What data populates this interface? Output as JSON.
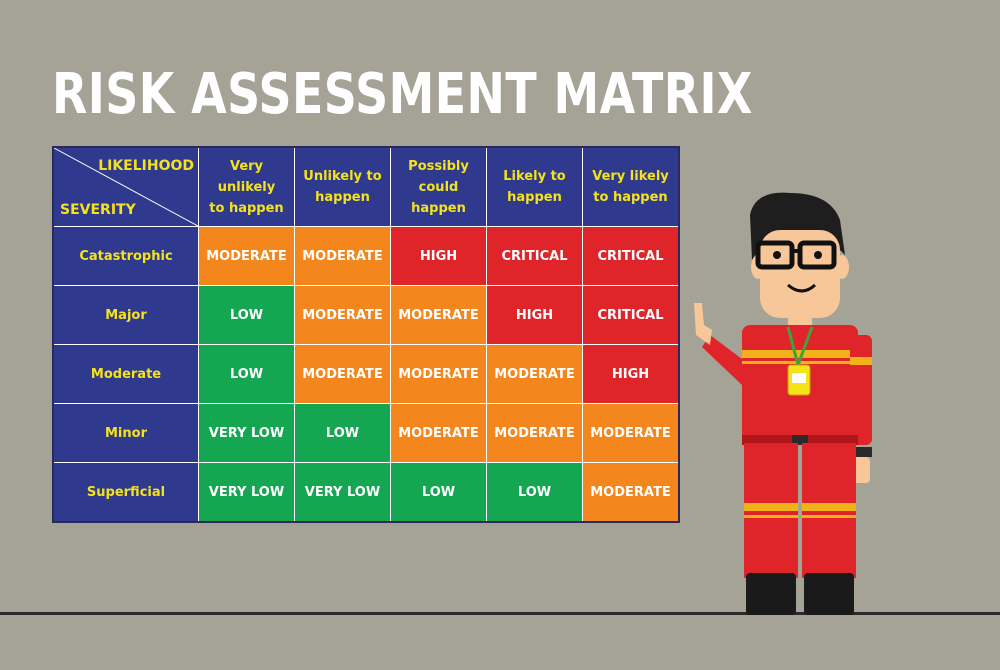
{
  "title": "RISK ASSESSMENT MATRIX",
  "matrix": {
    "likelihood_label": "LIKELIHOOD",
    "severity_label": "SEVERITY",
    "columns": [
      [
        "Very unlikely",
        "to happen"
      ],
      [
        "Unlikely to",
        "happen"
      ],
      [
        "Possibly",
        "could happen"
      ],
      [
        "Likely to",
        "happen"
      ],
      [
        "Very likely",
        "to happen"
      ]
    ],
    "rows": [
      {
        "severity": "Catastrophic",
        "cells": [
          "MODERATE",
          "MODERATE",
          "HIGH",
          "CRITICAL",
          "CRITICAL"
        ]
      },
      {
        "severity": "Major",
        "cells": [
          "LOW",
          "MODERATE",
          "MODERATE",
          "HIGH",
          "CRITICAL"
        ]
      },
      {
        "severity": "Moderate",
        "cells": [
          "LOW",
          "MODERATE",
          "MODERATE",
          "MODERATE",
          "HIGH"
        ]
      },
      {
        "severity": "Minor",
        "cells": [
          "VERY LOW",
          "LOW",
          "MODERATE",
          "MODERATE",
          "MODERATE"
        ]
      },
      {
        "severity": "Superficial",
        "cells": [
          "VERY LOW",
          "VERY LOW",
          "LOW",
          "LOW",
          "MODERATE"
        ]
      }
    ],
    "level_colors": {
      "VERY LOW": "#14a650",
      "LOW": "#14a650",
      "MODERATE": "#f4861e",
      "HIGH": "#e0252a",
      "CRITICAL": "#e0252a"
    },
    "header_bg": "#2f3a8f",
    "header_text_color": "#f5e31a"
  },
  "watermark_id": "396414234",
  "character": {
    "description_icon": "safety-worker-pointing-icon",
    "suit_color": "#e0252a"
  }
}
